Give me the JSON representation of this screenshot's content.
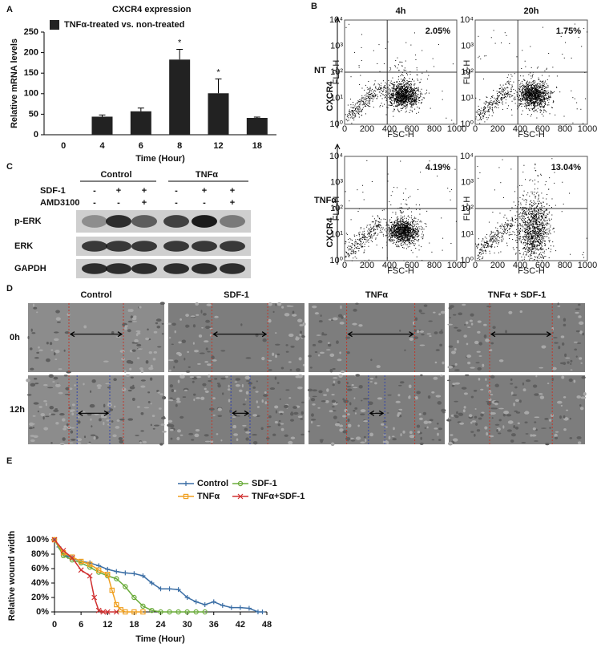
{
  "chart_data": [
    {
      "type": "bar",
      "title": "CXCR4 expression",
      "legend": "TNFα-treated vs. non-treated",
      "color": "#222222",
      "categories": [
        "0",
        "4",
        "6",
        "8",
        "12",
        "18"
      ],
      "values": [
        null,
        44,
        57,
        183,
        101,
        41
      ],
      "errors": [
        null,
        4,
        8,
        25,
        35,
        2
      ],
      "significance": [
        null,
        null,
        null,
        "*",
        "*",
        null
      ],
      "ylim": [
        0,
        250
      ],
      "yticks": [
        0,
        50,
        100,
        150,
        200,
        250
      ],
      "ylabel": "Relative mRNA levels",
      "xlabel": "Time (Hour)"
    },
    {
      "type": "line",
      "xlabel": "Time (Hour)",
      "ylabel": "Relative wound width",
      "xlim": [
        0,
        48
      ],
      "xticks": [
        0,
        6,
        12,
        18,
        24,
        30,
        36,
        42,
        48
      ],
      "ylim": [
        0,
        100
      ],
      "yticks": [
        {
          "value": 0,
          "label": "0%"
        },
        {
          "value": 20,
          "label": "20%"
        },
        {
          "value": 40,
          "label": "40%"
        },
        {
          "value": 60,
          "label": "60%"
        },
        {
          "value": 80,
          "label": "80%"
        },
        {
          "value": 100,
          "label": "100%"
        }
      ],
      "series": [
        {
          "name": "Control",
          "color": "#3b6ea5",
          "marker": "plus",
          "x": [
            0,
            1,
            2,
            3,
            4,
            6,
            8,
            10,
            12,
            14,
            16,
            18,
            20,
            22,
            24,
            26,
            28,
            30,
            32,
            34,
            36,
            38,
            40,
            42,
            44,
            46,
            47
          ],
          "values": [
            100,
            90,
            80,
            77,
            75,
            70,
            68,
            64,
            59,
            56,
            54,
            53,
            50,
            40,
            32,
            32,
            31,
            20,
            14,
            10,
            14,
            9,
            6,
            6,
            5,
            0,
            0
          ]
        },
        {
          "name": "SDF-1",
          "color": "#6aab3a",
          "marker": "circle",
          "x": [
            0,
            2,
            4,
            6,
            8,
            10,
            12,
            14,
            16,
            18,
            20,
            22,
            24,
            26,
            28,
            30,
            32,
            34
          ],
          "values": [
            100,
            78,
            72,
            68,
            62,
            55,
            50,
            46,
            35,
            20,
            8,
            2,
            0,
            0,
            0,
            0,
            0,
            0
          ]
        },
        {
          "name": "TNFα",
          "color": "#f0a020",
          "marker": "square",
          "x": [
            0,
            2,
            4,
            6,
            8,
            10,
            12,
            13,
            14,
            15,
            16,
            18,
            20
          ],
          "values": [
            100,
            82,
            76,
            70,
            66,
            58,
            52,
            30,
            10,
            3,
            0,
            0,
            0
          ]
        },
        {
          "name": "TNFα+SDF-1",
          "color": "#d03030",
          "marker": "cross",
          "x": [
            0,
            2,
            4,
            6,
            8,
            9,
            10,
            11,
            12,
            14
          ],
          "values": [
            100,
            85,
            75,
            58,
            50,
            20,
            2,
            0,
            0,
            0
          ]
        }
      ]
    }
  ],
  "panel_labels": [
    "A",
    "B",
    "C",
    "D",
    "E"
  ],
  "flow": {
    "columns": [
      "4h",
      "20h"
    ],
    "rows": [
      "NT",
      "TNFα"
    ],
    "ylabel": "CXCR4",
    "percents": [
      [
        "2.05%",
        "1.75%"
      ],
      [
        "4.19%",
        "13.04%"
      ]
    ],
    "xticks": [
      "0",
      "200",
      "400",
      "600",
      "800",
      "1000"
    ],
    "xlabel": "FSC-H",
    "yticks": [
      "10⁰",
      "10¹",
      "10²",
      "10³",
      "10⁴"
    ],
    "yname": "FL2-H"
  },
  "blot": {
    "groups": [
      "Control",
      "TNFα"
    ],
    "treatments": [
      {
        "name": "SDF-1",
        "signs": [
          "-",
          "+",
          "+",
          "-",
          "+",
          "+"
        ]
      },
      {
        "name": "AMD3100",
        "signs": [
          "-",
          "-",
          "+",
          "-",
          "-",
          "+"
        ]
      }
    ],
    "rows": [
      "p-ERK",
      "ERK",
      "GAPDH"
    ]
  },
  "wound": {
    "columns": [
      "Control",
      "SDF-1",
      "TNFα",
      "TNFα + SDF-1"
    ],
    "rows": [
      "0h",
      "12h"
    ]
  }
}
